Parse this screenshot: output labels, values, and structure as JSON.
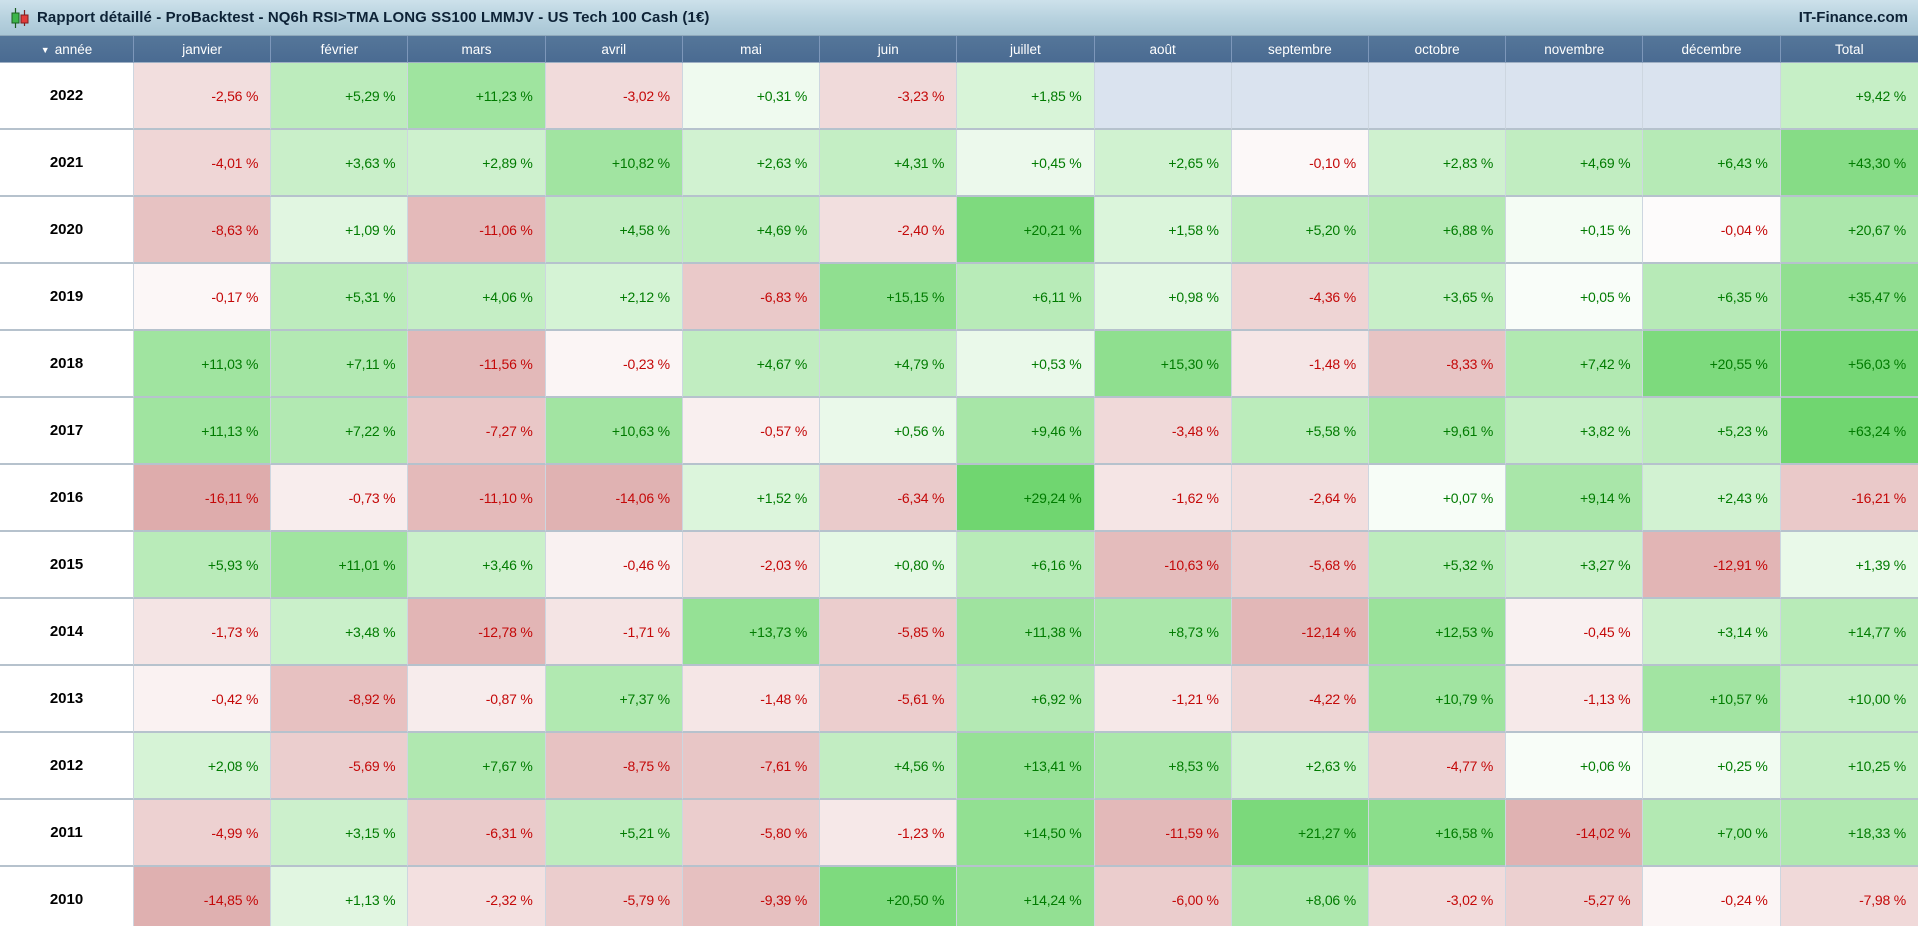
{
  "title_bar": {
    "title": "Rapport détaillé - ProBacktest - NQ6h RSI>TMA LONG SS100 LMMJV - US Tech 100 Cash (1€)",
    "brand": "IT-Finance.com",
    "icon": "candlestick-icon"
  },
  "colors": {
    "positive_text": "#007b00",
    "negative_text": "#c40808",
    "positive_cell_max": "#70d670",
    "negative_cell_max": "#d69898",
    "empty_cell": "#dae3ef",
    "header_bg": "#4a6b92",
    "titlebar_bg": "#b6d1de"
  },
  "table": {
    "sort_icon": "▼",
    "columns": [
      "année",
      "janvier",
      "février",
      "mars",
      "avril",
      "mai",
      "juin",
      "juillet",
      "août",
      "septembre",
      "octobre",
      "novembre",
      "décembre",
      "Total"
    ],
    "rows": [
      {
        "year": "2022",
        "values": [
          "-2,56 %",
          "+5,29 %",
          "+11,23 %",
          "-3,02 %",
          "+0,31 %",
          "-3,23 %",
          "+1,85 %",
          "",
          "",
          "",
          "",
          "",
          "+9,42 %"
        ]
      },
      {
        "year": "2021",
        "values": [
          "-4,01 %",
          "+3,63 %",
          "+2,89 %",
          "+10,82 %",
          "+2,63 %",
          "+4,31 %",
          "+0,45 %",
          "+2,65 %",
          "-0,10 %",
          "+2,83 %",
          "+4,69 %",
          "+6,43 %",
          "+43,30 %"
        ]
      },
      {
        "year": "2020",
        "values": [
          "-8,63 %",
          "+1,09 %",
          "-11,06 %",
          "+4,58 %",
          "+4,69 %",
          "-2,40 %",
          "+20,21 %",
          "+1,58 %",
          "+5,20 %",
          "+6,88 %",
          "+0,15 %",
          "-0,04 %",
          "+20,67 %"
        ]
      },
      {
        "year": "2019",
        "values": [
          "-0,17 %",
          "+5,31 %",
          "+4,06 %",
          "+2,12 %",
          "-6,83 %",
          "+15,15 %",
          "+6,11 %",
          "+0,98 %",
          "-4,36 %",
          "+3,65 %",
          "+0,05 %",
          "+6,35 %",
          "+35,47 %"
        ]
      },
      {
        "year": "2018",
        "values": [
          "+11,03 %",
          "+7,11 %",
          "-11,56 %",
          "-0,23 %",
          "+4,67 %",
          "+4,79 %",
          "+0,53 %",
          "+15,30 %",
          "-1,48 %",
          "-8,33 %",
          "+7,42 %",
          "+20,55 %",
          "+56,03 %"
        ]
      },
      {
        "year": "2017",
        "values": [
          "+11,13 %",
          "+7,22 %",
          "-7,27 %",
          "+10,63 %",
          "-0,57 %",
          "+0,56 %",
          "+9,46 %",
          "-3,48 %",
          "+5,58 %",
          "+9,61 %",
          "+3,82 %",
          "+5,23 %",
          "+63,24 %"
        ]
      },
      {
        "year": "2016",
        "values": [
          "-16,11 %",
          "-0,73 %",
          "-11,10 %",
          "-14,06 %",
          "+1,52 %",
          "-6,34 %",
          "+29,24 %",
          "-1,62 %",
          "-2,64 %",
          "+0,07 %",
          "+9,14 %",
          "+2,43 %",
          "-16,21 %"
        ]
      },
      {
        "year": "2015",
        "values": [
          "+5,93 %",
          "+11,01 %",
          "+3,46 %",
          "-0,46 %",
          "-2,03 %",
          "+0,80 %",
          "+6,16 %",
          "-10,63 %",
          "-5,68 %",
          "+5,32 %",
          "+3,27 %",
          "-12,91 %",
          "+1,39 %"
        ]
      },
      {
        "year": "2014",
        "values": [
          "-1,73 %",
          "+3,48 %",
          "-12,78 %",
          "-1,71 %",
          "+13,73 %",
          "-5,85 %",
          "+11,38 %",
          "+8,73 %",
          "-12,14 %",
          "+12,53 %",
          "-0,45 %",
          "+3,14 %",
          "+14,77 %"
        ]
      },
      {
        "year": "2013",
        "values": [
          "-0,42 %",
          "-8,92 %",
          "-0,87 %",
          "+7,37 %",
          "-1,48 %",
          "-5,61 %",
          "+6,92 %",
          "-1,21 %",
          "-4,22 %",
          "+10,79 %",
          "-1,13 %",
          "+10,57 %",
          "+10,00 %"
        ]
      },
      {
        "year": "2012",
        "values": [
          "+2,08 %",
          "-5,69 %",
          "+7,67 %",
          "-8,75 %",
          "-7,61 %",
          "+4,56 %",
          "+13,41 %",
          "+8,53 %",
          "+2,63 %",
          "-4,77 %",
          "+0,06 %",
          "+0,25 %",
          "+10,25 %"
        ]
      },
      {
        "year": "2011",
        "values": [
          "-4,99 %",
          "+3,15 %",
          "-6,31 %",
          "+5,21 %",
          "-5,80 %",
          "-1,23 %",
          "+14,50 %",
          "-11,59 %",
          "+21,27 %",
          "+16,58 %",
          "-14,02 %",
          "+7,00 %",
          "+18,33 %"
        ]
      },
      {
        "year": "2010",
        "values": [
          "-14,85 %",
          "+1,13 %",
          "-2,32 %",
          "-5,79 %",
          "-9,39 %",
          "+20,50 %",
          "+14,24 %",
          "-6,00 %",
          "+8,06 %",
          "-3,02 %",
          "-5,27 %",
          "-0,24 %",
          "-7,98 %"
        ]
      }
    ]
  }
}
